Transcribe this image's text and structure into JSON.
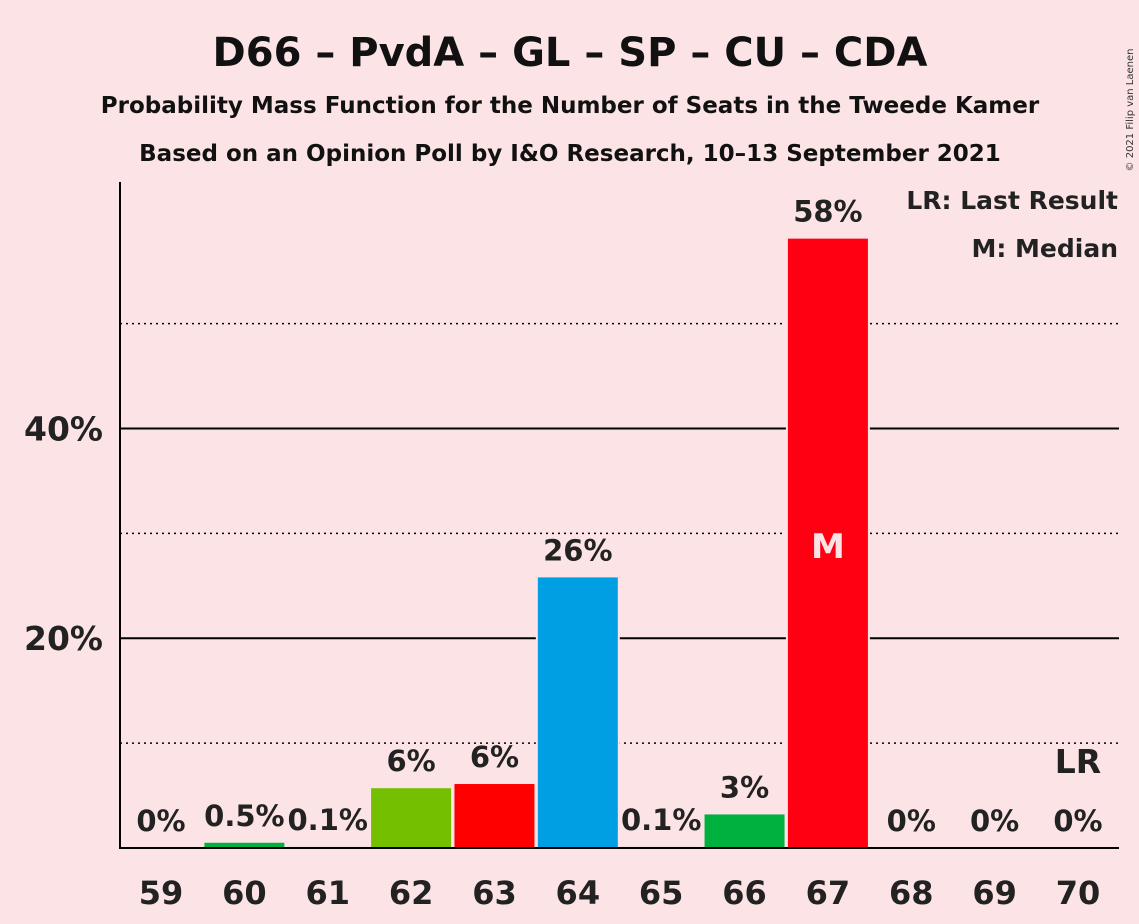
{
  "title": "D66 – PvdA – GL – SP – CU – CDA",
  "subtitle1": "Probability Mass Function for the Number of Seats in the Tweede Kamer",
  "subtitle2": "Based on an Opinion Poll by I&O Research, 10–13 September 2021",
  "copyright": "© 2021 Filip van Laenen",
  "legend": {
    "last_result": "LR: Last Result",
    "median": "M: Median"
  },
  "chart_data": {
    "type": "bar",
    "categories": [
      "59",
      "60",
      "61",
      "62",
      "63",
      "64",
      "65",
      "66",
      "67",
      "68",
      "69",
      "70"
    ],
    "values": [
      0,
      0.5,
      0.1,
      5.7,
      6.1,
      25.8,
      0.1,
      3.2,
      58.1,
      0,
      0,
      0
    ],
    "data_labels": [
      "0%",
      "0.5%",
      "0.1%",
      "6%",
      "6%",
      "26%",
      "0.1%",
      "3%",
      "58%",
      "0%",
      "0%",
      "0%"
    ],
    "colors": [
      "#00b140",
      "#00b140",
      "#00b140",
      "#73bf00",
      "#ff0000",
      "#009fe3",
      "#00b140",
      "#00b140",
      "#ff0013",
      "#00b140",
      "#00b140",
      "#00b140"
    ],
    "ylim": [
      0,
      63.5
    ],
    "yticks": [
      20,
      40
    ],
    "ytick_labels": [
      "20%",
      "40%"
    ],
    "minor_gridlines": [
      10,
      30,
      50
    ],
    "median": {
      "category": "67",
      "label": "M"
    },
    "last_result": {
      "category": "70",
      "label": "LR"
    }
  }
}
